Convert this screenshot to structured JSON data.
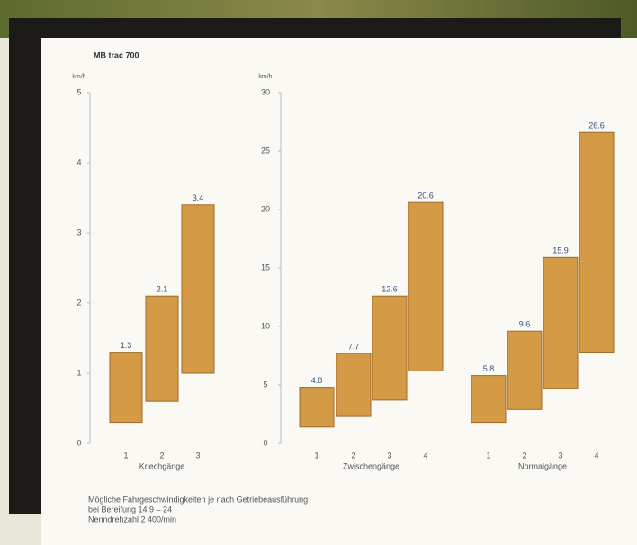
{
  "title": "MB trac 700",
  "chart_data": [
    {
      "type": "range-bar",
      "y_label": "km/h",
      "ylim": [
        0,
        5
      ],
      "yticks": [
        0,
        1,
        2,
        3,
        4,
        5
      ],
      "color": "#d49a45",
      "groups": [
        {
          "name": "Kriechgänge",
          "categories": [
            "1",
            "2",
            "3"
          ],
          "low": [
            0.3,
            0.6,
            1.0
          ],
          "high": [
            1.3,
            2.1,
            3.4
          ]
        }
      ]
    },
    {
      "type": "range-bar",
      "y_label": "km/h",
      "ylim": [
        0,
        30
      ],
      "yticks": [
        0,
        5,
        10,
        15,
        20,
        25,
        30
      ],
      "color": "#d49a45",
      "groups": [
        {
          "name": "Zwischengänge",
          "categories": [
            "1",
            "2",
            "3",
            "4"
          ],
          "low": [
            1.4,
            2.3,
            3.7,
            6.2
          ],
          "high": [
            4.8,
            7.7,
            12.6,
            20.6
          ]
        },
        {
          "name": "Normalgänge",
          "categories": [
            "1",
            "2",
            "3",
            "4"
          ],
          "low": [
            1.8,
            2.9,
            4.7,
            7.8
          ],
          "high": [
            5.8,
            9.6,
            15.9,
            26.6
          ]
        }
      ]
    }
  ],
  "footnote": [
    "Mögliche Fahrgeschwindigkeiten je nach Getriebeausführung",
    "bei Bereifung 14.9 – 24",
    "Nenndrehzahl 2 400/min"
  ]
}
